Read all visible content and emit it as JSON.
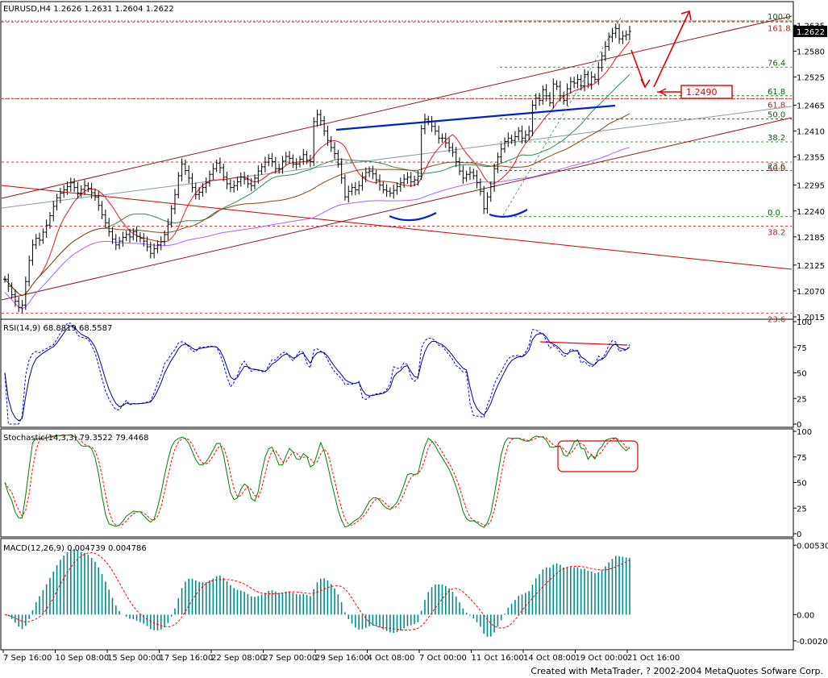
{
  "colors": {
    "background": "#ffffff",
    "frame": "#000000",
    "candle": "#000000",
    "channel": "#8b1a1a",
    "trendline_red": "#cc0000",
    "neckline": "#0022cc",
    "ma_red": "#e41a1c",
    "ma_green": "#2e8b57",
    "ma_brown": "#8b4513",
    "ma_violet": "#b05cff",
    "fib_green": "#006400",
    "fib_red": "#b22222",
    "rsi_main": "#000080",
    "rsi_signal": "#0000ff",
    "stoch_main": "#008000",
    "stoch_signal": "#ff0000",
    "macd_hist": "#008b8b",
    "macd_signal": "#ff0000",
    "annotation": "#e00000"
  },
  "header": {
    "symbol_info": "EURUSD,H4  1.2626 1.2631 1.2604 1.2622"
  },
  "chart_data": [
    {
      "type": "candlestick",
      "panel": "price",
      "symbol": "EURUSD",
      "timeframe": "H4",
      "ohlc_last": {
        "open": 1.2626,
        "high": 1.2631,
        "low": 1.2604,
        "close": 1.2622
      },
      "ylim": [
        1.2015,
        1.2675
      ],
      "price_ticks": [
        "1.2635",
        "1.2580",
        "1.2525",
        "1.2465",
        "1.2410",
        "1.2355",
        "1.2295",
        "1.2240",
        "1.2185",
        "1.2125",
        "1.2070",
        "1.2015"
      ],
      "current_price_label": "1.2622",
      "target_label": "1.2490",
      "closes": [
        1.2095,
        1.208,
        1.2062,
        1.2048,
        1.2035,
        1.204,
        1.209,
        1.2135,
        1.2168,
        1.2182,
        1.2178,
        1.2195,
        1.221,
        1.223,
        1.225,
        1.2268,
        1.2278,
        1.2285,
        1.2292,
        1.23,
        1.229,
        1.2278,
        1.2286,
        1.2294,
        1.2288,
        1.2279,
        1.227,
        1.2252,
        1.2232,
        1.2215,
        1.2196,
        1.218,
        1.2168,
        1.2176,
        1.2184,
        1.219,
        1.2185,
        1.2196,
        1.2186,
        1.2182,
        1.2176,
        1.2164,
        1.215,
        1.216,
        1.2168,
        1.2175,
        1.219,
        1.2212,
        1.2245,
        1.2275,
        1.2315,
        1.234,
        1.2326,
        1.231,
        1.229,
        1.2275,
        1.228,
        1.229,
        1.23,
        1.2318,
        1.233,
        1.2342,
        1.2332,
        1.2312,
        1.2298,
        1.229,
        1.2294,
        1.2302,
        1.2312,
        1.2308,
        1.2298,
        1.2294,
        1.231,
        1.2325,
        1.2334,
        1.2344,
        1.2352,
        1.2345,
        1.233,
        1.233,
        1.2346,
        1.2356,
        1.2352,
        1.234,
        1.234,
        1.235,
        1.236,
        1.2348,
        1.2345,
        1.243,
        1.2445,
        1.2432,
        1.241,
        1.239,
        1.2375,
        1.2362,
        1.234,
        1.231,
        1.227,
        1.2282,
        1.229,
        1.2285,
        1.2294,
        1.2312,
        1.2322,
        1.2325,
        1.2319,
        1.2306,
        1.2295,
        1.2285,
        1.2282,
        1.2278,
        1.2284,
        1.2292,
        1.23,
        1.2308,
        1.2312,
        1.2302,
        1.2306,
        1.2314,
        1.2415,
        1.2435,
        1.243,
        1.242,
        1.241,
        1.2395,
        1.2395,
        1.2385,
        1.2375,
        1.2365,
        1.2345,
        1.2325,
        1.231,
        1.2318,
        1.2322,
        1.2315,
        1.23,
        1.2282,
        1.2245,
        1.227,
        1.2292,
        1.233,
        1.2355,
        1.2372,
        1.2388,
        1.2395,
        1.239,
        1.2398,
        1.241,
        1.2395,
        1.2402,
        1.241,
        1.2465,
        1.248,
        1.2475,
        1.2498,
        1.2485,
        1.247,
        1.251,
        1.2505,
        1.2485,
        1.2475,
        1.25,
        1.2515,
        1.2512,
        1.252,
        1.2506,
        1.253,
        1.251,
        1.2525,
        1.252,
        1.2545,
        1.257,
        1.259,
        1.261,
        1.2618,
        1.2628,
        1.2606,
        1.2612,
        1.2615,
        1.2622
      ]
    },
    {
      "type": "line",
      "panel": "rsi",
      "title": "RSI(14,9)  68.8819  68.5587",
      "ylim": [
        0,
        100
      ],
      "y_ticks": [
        "100",
        "75",
        "50",
        "25",
        "0"
      ],
      "series_values": [
        68.8819,
        68.5587
      ]
    },
    {
      "type": "line",
      "panel": "stochastic",
      "title": "Stochastic(14,3,3)  79.3522  79.4468",
      "ylim": [
        0,
        100
      ],
      "y_ticks": [
        "100",
        "75",
        "50",
        "25",
        "0"
      ],
      "series_values": [
        79.3522,
        79.4468
      ]
    },
    {
      "type": "bar",
      "panel": "macd",
      "title": "MACD(12,26,9)  0.004739  0.004786",
      "ylim": [
        -0.0025,
        0.0055
      ],
      "y_ticks": [
        "0.00530",
        "0.00",
        "-0.0020"
      ],
      "series_values": [
        0.004739,
        0.004786
      ]
    }
  ],
  "fib_levels": {
    "upper": [
      {
        "label": "100.0",
        "value": 1.2644
      },
      {
        "label": "76.4",
        "value": 1.2546
      },
      {
        "label": "61.8",
        "value": 1.2485
      },
      {
        "label": "50.0",
        "value": 1.2436
      },
      {
        "label": "38.2",
        "value": 1.2387
      },
      {
        "label": "23.6",
        "value": 1.2326
      },
      {
        "label": "0.0",
        "value": 1.2228
      }
    ],
    "lower": [
      {
        "label": "161.8",
        "value": 1.2642
      },
      {
        "label": "61.8",
        "value": 1.2479
      },
      {
        "label": "50.0",
        "value": 1.2344
      },
      {
        "label": "38.2",
        "value": 1.2208
      },
      {
        "label": "23.6",
        "value": 1.2023
      }
    ]
  },
  "time_axis": [
    "7 Sep 16:00",
    "10 Sep 08:00",
    "15 Sep 00:00",
    "17 Sep 16:00",
    "22 Sep 08:00",
    "27 Sep 00:00",
    "29 Sep 16:00",
    "4 Oct 08:00",
    "7 Oct 00:00",
    "11 Oct 16:00",
    "14 Oct 08:00",
    "19 Oct 00:00",
    "21 Oct 16:00"
  ],
  "footer": {
    "credit": "Created with MetaTrader, ? 2002-2004 MetaQuotes Sofware Corp."
  }
}
